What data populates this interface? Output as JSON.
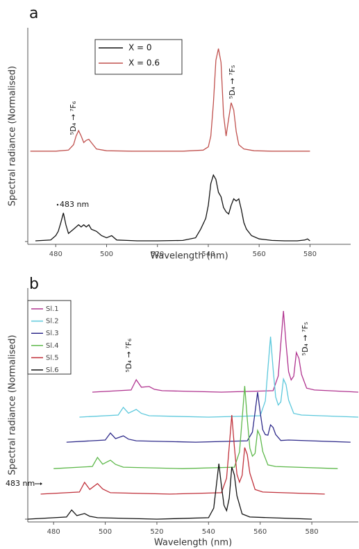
{
  "chart_data": [
    {
      "type": "line",
      "title": "a",
      "x_label": "Wavelength (nm)",
      "y_label": "Spectral radiance (Normalised)",
      "xlim": [
        469,
        596
      ],
      "ylim": [
        0,
        1
      ],
      "xticks": [
        480,
        500,
        520,
        540,
        560,
        580
      ],
      "legend": "upper left",
      "series": [
        {
          "name": "X = 0",
          "color": "#111111",
          "x": [
            472,
            478,
            480,
            481,
            482,
            483,
            484,
            485,
            487,
            489,
            490,
            491,
            492,
            493,
            494,
            496,
            498,
            500,
            502,
            504,
            508,
            512,
            520,
            530,
            535,
            537,
            539,
            540,
            541,
            542,
            543,
            544,
            545,
            546,
            547,
            548,
            549,
            550,
            551,
            552,
            553,
            554,
            555,
            557,
            560,
            565,
            570,
            575,
            578,
            579,
            580
          ],
          "values": [
            0.016,
            0.02,
            0.04,
            0.06,
            0.1,
            0.145,
            0.09,
            0.05,
            0.07,
            0.09,
            0.08,
            0.09,
            0.08,
            0.09,
            0.07,
            0.06,
            0.04,
            0.03,
            0.04,
            0.02,
            0.018,
            0.016,
            0.016,
            0.018,
            0.03,
            0.07,
            0.12,
            0.18,
            0.28,
            0.32,
            0.3,
            0.24,
            0.22,
            0.17,
            0.15,
            0.14,
            0.18,
            0.21,
            0.2,
            0.21,
            0.16,
            0.1,
            0.07,
            0.04,
            0.025,
            0.018,
            0.016,
            0.016,
            0.02,
            0.025,
            0.016
          ]
        },
        {
          "name": "X = 0.6",
          "color": "#c0504d",
          "x": [
            470,
            480,
            485,
            487,
            488,
            489,
            490,
            491,
            492,
            493,
            494,
            496,
            500,
            510,
            520,
            530,
            538,
            540,
            541,
            542,
            543,
            544,
            545,
            546,
            547,
            548,
            549,
            550,
            551,
            552,
            554,
            558,
            565,
            580
          ],
          "values": [
            0.43,
            0.43,
            0.435,
            0.46,
            0.5,
            0.525,
            0.5,
            0.47,
            0.48,
            0.485,
            0.47,
            0.44,
            0.432,
            0.43,
            0.43,
            0.43,
            0.435,
            0.45,
            0.5,
            0.65,
            0.85,
            0.904,
            0.84,
            0.6,
            0.5,
            0.58,
            0.654,
            0.62,
            0.52,
            0.46,
            0.44,
            0.432,
            0.43,
            0.43
          ]
        }
      ],
      "annotations": [
        "⁵D₄ → ⁷F₆",
        "⁵D₄ → ⁷F₅",
        "483 nm"
      ]
    },
    {
      "type": "line",
      "title": "b",
      "x_label": "Wavelength (nm)",
      "y_label": "Spectral radiance (Normalised)",
      "xlim": [
        470,
        598
      ],
      "ylim": [
        0,
        1
      ],
      "xticks": [
        480,
        500,
        520,
        540,
        560,
        580
      ],
      "legend": "upper left",
      "series": [
        {
          "name": "Sl.1",
          "color": "#b0338f",
          "x": [
            495,
            510,
            512,
            514,
            517,
            519,
            522,
            545,
            565,
            567,
            568,
            569,
            570,
            571,
            572,
            573,
            574,
            575,
            576,
            578,
            581,
            598
          ],
          "values": [
            0.555,
            0.564,
            0.608,
            0.576,
            0.579,
            0.567,
            0.561,
            0.555,
            0.561,
            0.624,
            0.763,
            0.902,
            0.763,
            0.642,
            0.607,
            0.623,
            0.724,
            0.699,
            0.631,
            0.572,
            0.564,
            0.555
          ]
        },
        {
          "name": "Sl.2",
          "color": "#5bc8dc",
          "x": [
            490,
            505,
            507,
            509,
            512,
            514,
            517,
            540,
            560,
            562,
            563,
            564,
            565,
            566,
            567,
            568,
            569,
            570,
            571,
            573,
            576,
            598
          ],
          "values": [
            0.448,
            0.457,
            0.49,
            0.465,
            0.481,
            0.464,
            0.454,
            0.448,
            0.454,
            0.517,
            0.655,
            0.792,
            0.655,
            0.534,
            0.5,
            0.513,
            0.611,
            0.587,
            0.521,
            0.464,
            0.457,
            0.448
          ]
        },
        {
          "name": "Sl.3",
          "color": "#2e2a8a",
          "x": [
            485,
            500,
            502,
            504,
            507,
            509,
            512,
            535,
            555,
            557,
            558,
            559,
            560,
            561,
            562,
            563,
            564,
            565,
            566,
            568,
            571,
            595
          ],
          "values": [
            0.341,
            0.35,
            0.38,
            0.356,
            0.368,
            0.354,
            0.347,
            0.341,
            0.347,
            0.384,
            0.469,
            0.555,
            0.469,
            0.394,
            0.373,
            0.371,
            0.415,
            0.404,
            0.374,
            0.348,
            0.35,
            0.341
          ]
        },
        {
          "name": "Sl.4",
          "color": "#5db84a",
          "x": [
            480,
            495,
            497,
            499,
            502,
            504,
            507,
            530,
            550,
            552,
            553,
            554,
            555,
            556,
            557,
            558,
            559,
            560,
            561,
            563,
            566,
            590
          ],
          "values": [
            0.228,
            0.237,
            0.276,
            0.247,
            0.264,
            0.246,
            0.234,
            0.228,
            0.234,
            0.299,
            0.44,
            0.581,
            0.44,
            0.316,
            0.281,
            0.293,
            0.391,
            0.367,
            0.301,
            0.244,
            0.237,
            0.228
          ]
        },
        {
          "name": "Sl.5",
          "color": "#c0303a",
          "x": [
            475,
            490,
            492,
            494,
            497,
            499,
            502,
            525,
            545,
            547,
            548,
            549,
            550,
            551,
            552,
            553,
            554,
            555,
            556,
            558,
            561,
            585
          ],
          "values": [
            0.119,
            0.128,
            0.169,
            0.139,
            0.164,
            0.141,
            0.125,
            0.119,
            0.125,
            0.187,
            0.322,
            0.457,
            0.322,
            0.204,
            0.17,
            0.199,
            0.318,
            0.288,
            0.209,
            0.139,
            0.128,
            0.119
          ]
        },
        {
          "name": "Sl.6",
          "color": "#111111",
          "x": [
            470,
            485,
            487,
            489,
            492,
            494,
            497,
            520,
            540,
            542,
            543,
            544,
            545,
            546,
            547,
            548,
            549,
            550,
            551,
            553,
            556,
            580
          ],
          "values": [
            0.012,
            0.021,
            0.051,
            0.027,
            0.036,
            0.024,
            0.018,
            0.012,
            0.018,
            0.059,
            0.154,
            0.249,
            0.154,
            0.071,
            0.048,
            0.101,
            0.235,
            0.201,
            0.112,
            0.034,
            0.021,
            0.012
          ]
        }
      ],
      "annotations": [
        "⁵D₄ → ⁷F₆",
        "⁵D₄ → ⁷F₅",
        "483 nm"
      ]
    }
  ]
}
